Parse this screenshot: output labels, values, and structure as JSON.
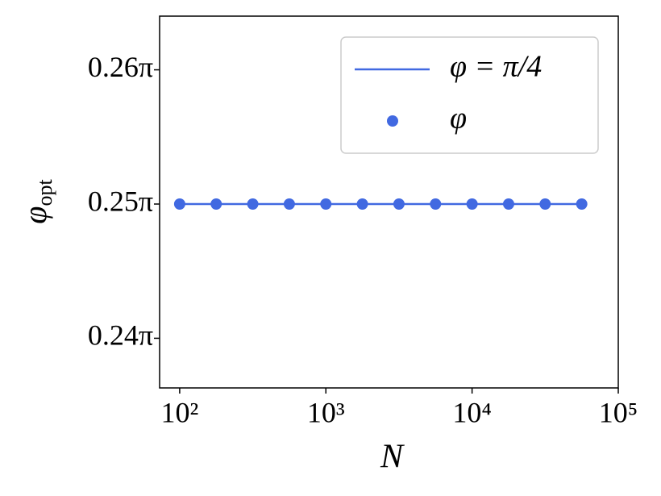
{
  "chart_data": {
    "type": "line",
    "x_label": "N",
    "y_label": {
      "symbol": "φ",
      "subscript": "opt"
    },
    "x": [
      100,
      177.8,
      316.2,
      562.3,
      1000,
      1778,
      3162,
      5623,
      10000,
      17783,
      31623,
      56234
    ],
    "series": [
      {
        "name": "φ = π/4",
        "color": "#4169e1",
        "style": "line",
        "values": [
          0.25,
          0.25,
          0.25,
          0.25,
          0.25,
          0.25,
          0.25,
          0.25,
          0.25,
          0.25,
          0.25,
          0.25
        ]
      },
      {
        "name": "φ",
        "color": "#4169e1",
        "style": "marker",
        "values": [
          0.25,
          0.25,
          0.25,
          0.25,
          0.25,
          0.25,
          0.25,
          0.25,
          0.25,
          0.25,
          0.25,
          0.25
        ]
      }
    ],
    "x_scale": "log",
    "xlim": [
      72.9,
      100000
    ],
    "xticks": [
      {
        "value": 100,
        "label": "10²"
      },
      {
        "value": 1000,
        "label": "10³"
      },
      {
        "value": 10000,
        "label": "10⁴"
      },
      {
        "value": 100000,
        "label": "10⁵"
      }
    ],
    "ylim": [
      0.2363,
      0.264
    ],
    "yticks": [
      {
        "value": 0.24,
        "label": "0.24π"
      },
      {
        "value": 0.25,
        "label": "0.25π"
      },
      {
        "value": 0.26,
        "label": "0.26π"
      }
    ],
    "grid": false,
    "legend": "upper right"
  }
}
